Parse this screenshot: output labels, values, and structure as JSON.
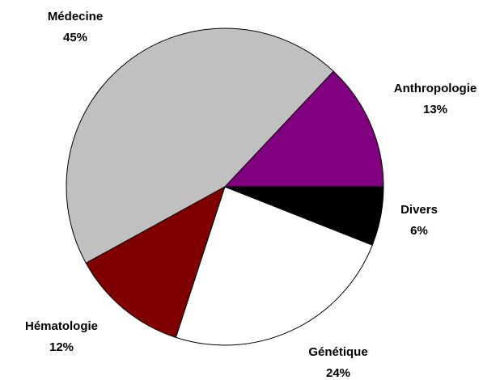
{
  "chart_data": {
    "type": "pie",
    "categories": [
      "Anthropologie",
      "Médecine",
      "Hématologie",
      "Génétique",
      "Divers"
    ],
    "values": [
      13,
      45,
      12,
      24,
      6
    ],
    "value_labels": [
      "13%",
      "45%",
      "12%",
      "24%",
      "6%"
    ],
    "colors": [
      "#800080",
      "#c0c0c0",
      "#800000",
      "#ffffff",
      "#000000"
    ]
  }
}
